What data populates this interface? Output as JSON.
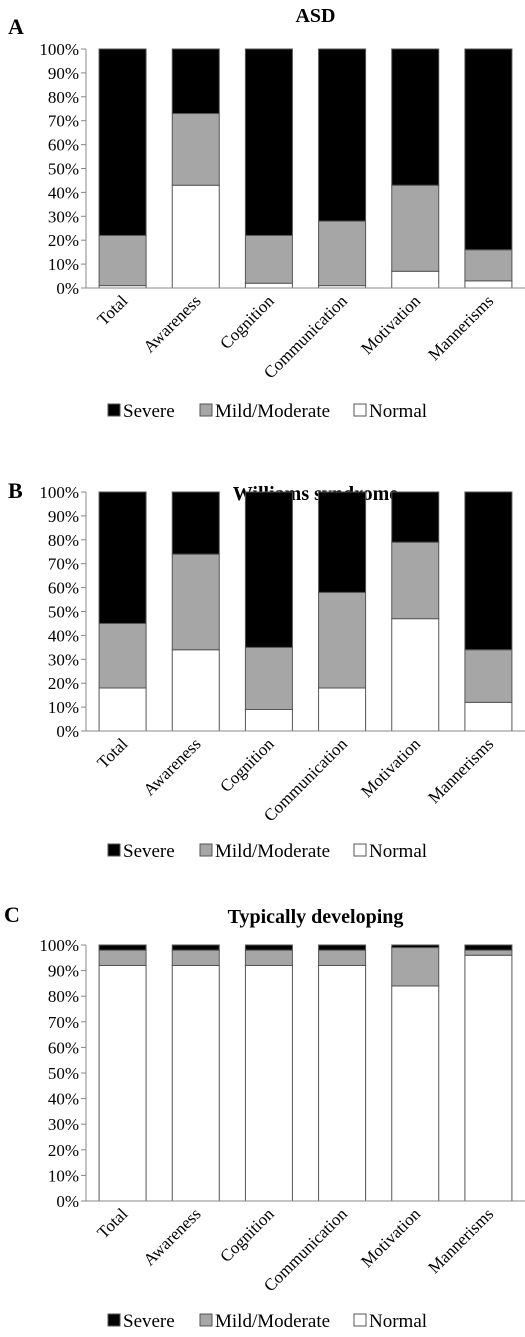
{
  "legend_placement": "bottom",
  "colors": {
    "Severe": "#000000",
    "Mild/Moderate": "#a6a6a6",
    "Normal": "#ffffff",
    "outline": "#555555",
    "axis": "#888888"
  },
  "y_ticks": [
    "0%",
    "10%",
    "20%",
    "30%",
    "40%",
    "50%",
    "60%",
    "70%",
    "80%",
    "90%",
    "100%"
  ],
  "chart_data": [
    {
      "panel": "A",
      "type": "bar",
      "stacked": true,
      "title": "ASD",
      "ylim": [
        0,
        100
      ],
      "grid": false,
      "categories": [
        "Total",
        "Awareness",
        "Cognition",
        "Communication",
        "Motivation",
        "Mannerisms"
      ],
      "series": [
        {
          "name": "Normal",
          "values": [
            1,
            43,
            2,
            1,
            7,
            3
          ]
        },
        {
          "name": "Mild/Moderate",
          "values": [
            21,
            30,
            20,
            27,
            36,
            13
          ]
        },
        {
          "name": "Severe",
          "values": [
            78,
            27,
            78,
            72,
            57,
            84
          ]
        }
      ]
    },
    {
      "panel": "B",
      "type": "bar",
      "stacked": true,
      "title": "Williams syndrome",
      "ylim": [
        0,
        100
      ],
      "grid": false,
      "categories": [
        "Total",
        "Awareness",
        "Cognition",
        "Communication",
        "Motivation",
        "Mannerisms"
      ],
      "series": [
        {
          "name": "Normal",
          "values": [
            18,
            34,
            9,
            18,
            47,
            12
          ]
        },
        {
          "name": "Mild/Moderate",
          "values": [
            27,
            40,
            26,
            40,
            32,
            22
          ]
        },
        {
          "name": "Severe",
          "values": [
            55,
            26,
            65,
            42,
            21,
            66
          ]
        }
      ]
    },
    {
      "panel": "C",
      "type": "bar",
      "stacked": true,
      "title": "Typically developing",
      "ylim": [
        0,
        100
      ],
      "grid": false,
      "categories": [
        "Total",
        "Awareness",
        "Cognition",
        "Communication",
        "Motivation",
        "Mannerisms"
      ],
      "series": [
        {
          "name": "Normal",
          "values": [
            92,
            92,
            92,
            92,
            84,
            96
          ]
        },
        {
          "name": "Mild/Moderate",
          "values": [
            6,
            6,
            6,
            6,
            15,
            2
          ]
        },
        {
          "name": "Severe",
          "values": [
            2,
            2,
            2,
            2,
            1,
            2
          ]
        }
      ]
    }
  ]
}
